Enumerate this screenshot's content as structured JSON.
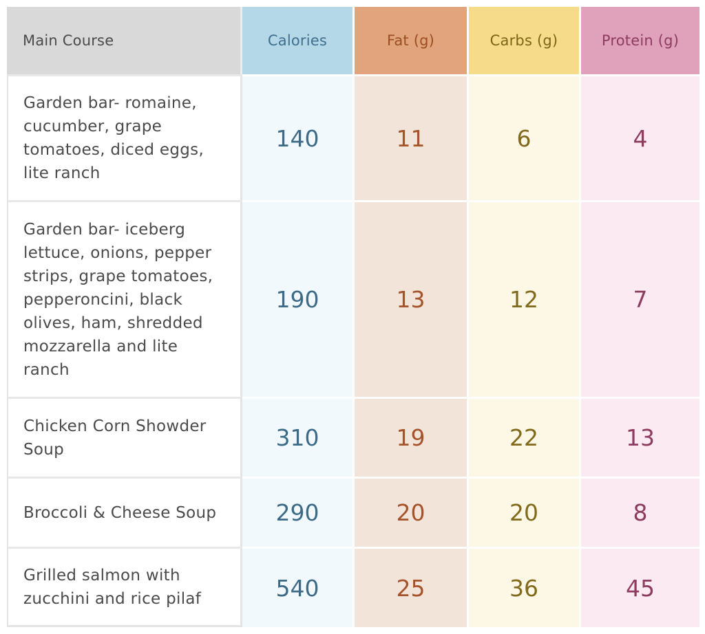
{
  "table": {
    "headers": {
      "main": "Main Course",
      "calories": "Calories",
      "fat": "Fat (g)",
      "carbs": "Carbs (g)",
      "protein": "Protein (g)"
    },
    "rows": [
      {
        "name": "Garden bar- romaine, cucumber, grape tomatoes, diced eggs, lite ranch",
        "calories": "140",
        "fat": "11",
        "carbs": "6",
        "protein": "4"
      },
      {
        "name": "Garden bar- iceberg lettuce, onions, pepper strips, grape tomatoes, pepperoncini, black olives, ham, shredded mozzarella and lite ranch",
        "calories": "190",
        "fat": "13",
        "carbs": "12",
        "protein": "7"
      },
      {
        "name": "Chicken Corn Showder Soup",
        "calories": "310",
        "fat": "19",
        "carbs": "22",
        "protein": "13"
      },
      {
        "name": "Broccoli & Cheese Soup",
        "calories": "290",
        "fat": "20",
        "carbs": "20",
        "protein": "8"
      },
      {
        "name": "Grilled salmon with zucchini and rice pilaf",
        "calories": "540",
        "fat": "25",
        "carbs": "36",
        "protein": "45"
      }
    ]
  },
  "colors": {
    "header_main": "#d9d9d9",
    "header_calories": "#b5d8e8",
    "header_fat": "#e2a47c",
    "header_carbs": "#f6dc8a",
    "header_protein": "#e0a2ba",
    "cell_calories": "#f2f9fd",
    "cell_fat": "#f3e4d9",
    "cell_carbs": "#fdf7e6",
    "cell_protein": "#fbeaf1"
  }
}
